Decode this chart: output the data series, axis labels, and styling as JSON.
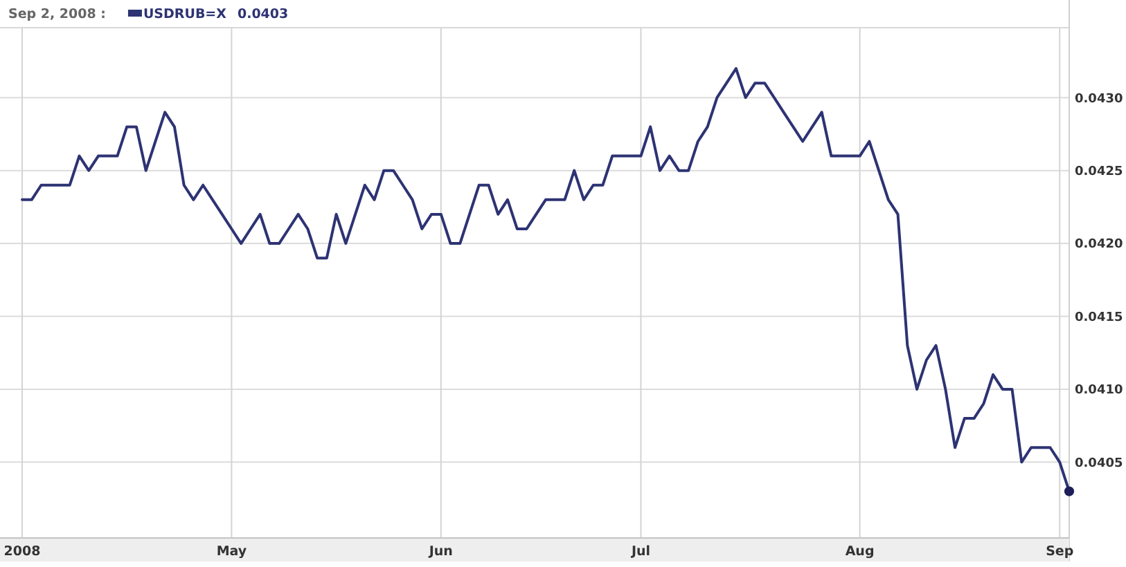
{
  "chart_data": {
    "type": "line",
    "title": "Sep 2, 2008 :",
    "categories": [
      "2008",
      null,
      null,
      null,
      null,
      null,
      null,
      null,
      null,
      null,
      null,
      null,
      null,
      null,
      null,
      null,
      null,
      null,
      null,
      null,
      null,
      null,
      "May",
      null,
      null,
      null,
      null,
      null,
      null,
      null,
      null,
      null,
      null,
      null,
      null,
      null,
      null,
      null,
      null,
      null,
      null,
      null,
      null,
      null,
      "Jun",
      null,
      null,
      null,
      null,
      null,
      null,
      null,
      null,
      null,
      null,
      null,
      null,
      null,
      null,
      null,
      null,
      null,
      null,
      null,
      null,
      "Jul",
      null,
      null,
      null,
      null,
      null,
      null,
      null,
      null,
      null,
      null,
      null,
      null,
      null,
      null,
      null,
      null,
      null,
      null,
      null,
      null,
      null,
      null,
      "Aug",
      null,
      null,
      null,
      null,
      null,
      null,
      null,
      null,
      null,
      null,
      null,
      null,
      null,
      null,
      null,
      null,
      null,
      null,
      null,
      null,
      "Sep",
      null
    ],
    "series": [
      {
        "name": "USDRUB=X",
        "color": "#2d3373",
        "values": [
          0.0423,
          0.0423,
          0.0424,
          0.0424,
          0.0424,
          0.0424,
          0.0426,
          0.0425,
          0.0426,
          0.0426,
          0.0426,
          0.0428,
          0.0428,
          0.0425,
          0.0427,
          0.0429,
          0.0428,
          0.0424,
          0.0423,
          0.0424,
          0.0423,
          0.0422,
          0.0421,
          0.042,
          0.0421,
          0.0422,
          0.042,
          0.042,
          0.0421,
          0.0422,
          0.0421,
          0.0419,
          0.0419,
          0.0422,
          0.042,
          0.0422,
          0.0424,
          0.0423,
          0.0425,
          0.0425,
          0.0424,
          0.0423,
          0.0421,
          0.0422,
          0.0422,
          0.042,
          0.042,
          0.0422,
          0.0424,
          0.0424,
          0.0422,
          0.0423,
          0.0421,
          0.0421,
          0.0422,
          0.0423,
          0.0423,
          0.0423,
          0.0425,
          0.0423,
          0.0424,
          0.0424,
          0.0426,
          0.0426,
          0.0426,
          0.0426,
          0.0428,
          0.0425,
          0.0426,
          0.0425,
          0.0425,
          0.0427,
          0.0428,
          0.043,
          0.0431,
          0.0432,
          0.043,
          0.0431,
          0.0431,
          0.043,
          0.0429,
          0.0428,
          0.0427,
          0.0428,
          0.0429,
          0.0426,
          0.0426,
          0.0426,
          0.0426,
          0.0427,
          0.0425,
          0.0423,
          0.0422,
          0.0413,
          0.041,
          0.0412,
          0.0413,
          0.041,
          0.0406,
          0.0408,
          0.0408,
          0.0409,
          0.0411,
          0.041,
          0.041,
          0.0405,
          0.0406,
          0.0406,
          0.0406,
          0.0405,
          0.0403
        ]
      },
      {
        "type": "scatter",
        "color": "#1c1f5a",
        "marker": "circle",
        "values": [
          null,
          null,
          null,
          null,
          null,
          null,
          null,
          null,
          null,
          null,
          null,
          null,
          null,
          null,
          null,
          null,
          null,
          null,
          null,
          null,
          null,
          null,
          null,
          null,
          null,
          null,
          null,
          null,
          null,
          null,
          null,
          null,
          null,
          null,
          null,
          null,
          null,
          null,
          null,
          null,
          null,
          null,
          null,
          null,
          null,
          null,
          null,
          null,
          null,
          null,
          null,
          null,
          null,
          null,
          null,
          null,
          null,
          null,
          null,
          null,
          null,
          null,
          null,
          null,
          null,
          null,
          null,
          null,
          null,
          null,
          null,
          null,
          null,
          null,
          null,
          null,
          null,
          null,
          null,
          null,
          null,
          null,
          null,
          null,
          null,
          null,
          null,
          null,
          null,
          null,
          null,
          null,
          null,
          null,
          null,
          null,
          null,
          null,
          null,
          null,
          null,
          null,
          null,
          null,
          null,
          null,
          null,
          null,
          null,
          null,
          0.0403
        ]
      }
    ],
    "ylim": [
      0.03998,
      0.04348
    ],
    "yticks": [
      0.0405,
      {
        "value": 0.041,
        "label": "0.0410"
      },
      0.0415,
      {
        "value": 0.042,
        "label": "0.0420"
      },
      0.0425,
      {
        "value": 0.043,
        "label": "0.0430"
      }
    ],
    "grid": true,
    "legend": "top left",
    "annotations": [
      "0.0403"
    ]
  }
}
